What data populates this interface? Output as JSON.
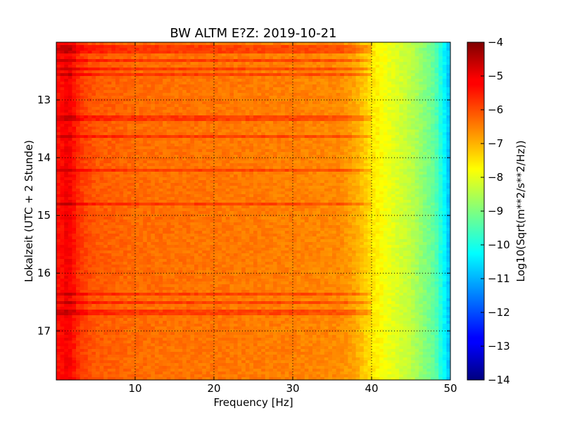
{
  "chart_data": {
    "type": "heatmap",
    "title": "BW ALTM E?Z: 2019-10-21",
    "xlabel": "Frequency [Hz]",
    "ylabel": "Lokalzeit (UTC + 2 Stunde)",
    "colorbar_label": "Log10(Sqrt(m**2/s**2/Hz))",
    "xlim": [
      0,
      50
    ],
    "ylim": [
      17.85,
      12.0
    ],
    "clim": [
      -14,
      -4
    ],
    "colormap": "jet",
    "grid": true,
    "x_ticks": [
      10,
      20,
      30,
      40,
      50
    ],
    "x_tick_labels": [
      "10",
      "20",
      "30",
      "40",
      "50"
    ],
    "y_ticks": [
      13,
      14,
      15,
      16,
      17
    ],
    "y_tick_labels": [
      "13",
      "14",
      "15",
      "16",
      "17"
    ],
    "colorbar_ticks": [
      -4,
      -5,
      -6,
      -7,
      -8,
      -9,
      -10,
      -11,
      -12,
      -13,
      -14
    ],
    "colorbar_tick_labels": [
      "−4",
      "−5",
      "−6",
      "−7",
      "−8",
      "−9",
      "−10",
      "−11",
      "−12",
      "−13",
      "−14"
    ],
    "spectrum_profile": {
      "frequency_hz": [
        0.5,
        1.5,
        3,
        5,
        10,
        20,
        30,
        36,
        38,
        40,
        42,
        45,
        48,
        49.5,
        50
      ],
      "log10_amplitude": [
        -5.4,
        -5.1,
        -5.8,
        -6.1,
        -6.3,
        -6.4,
        -6.5,
        -6.6,
        -6.9,
        -7.5,
        -7.9,
        -8.4,
        -9.3,
        -10.5,
        -11.0
      ]
    },
    "strong_bands": [
      {
        "time": 12.08,
        "log10_amplitude": -5.2
      },
      {
        "time": 12.15,
        "log10_amplitude": -5.5
      },
      {
        "time": 12.3,
        "log10_amplitude": -5.3
      },
      {
        "time": 12.48,
        "log10_amplitude": -5.4
      },
      {
        "time": 12.55,
        "log10_amplitude": -5.5
      },
      {
        "time": 13.32,
        "log10_amplitude": -5.8
      },
      {
        "time": 13.62,
        "log10_amplitude": -5.7
      },
      {
        "time": 14.2,
        "log10_amplitude": -5.9
      },
      {
        "time": 14.8,
        "log10_amplitude": -6.0
      },
      {
        "time": 16.38,
        "log10_amplitude": -5.8
      },
      {
        "time": 16.52,
        "log10_amplitude": -5.9
      },
      {
        "time": 16.68,
        "log10_amplitude": -6.0
      }
    ]
  }
}
